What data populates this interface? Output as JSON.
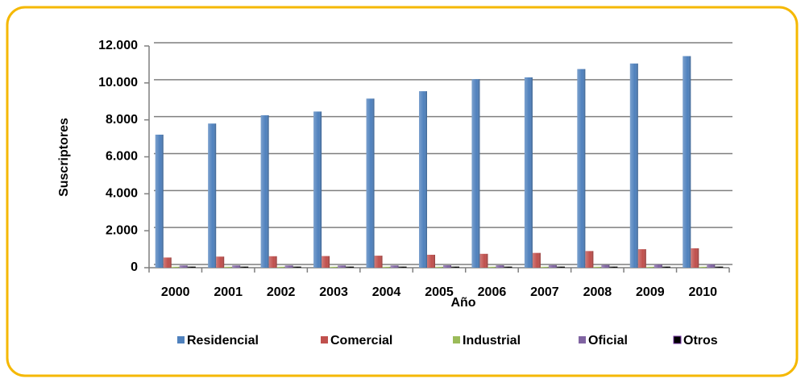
{
  "chart_data": {
    "type": "bar",
    "y_label": "Suscriptores",
    "x_label": "Año",
    "categories": [
      "2000",
      "2001",
      "2002",
      "2003",
      "2004",
      "2005",
      "2006",
      "2007",
      "2008",
      "2009",
      "2010"
    ],
    "series": [
      {
        "name": "Residencial",
        "color": "#4f81bd",
        "values": [
          7200,
          7800,
          8250,
          8450,
          9150,
          9550,
          10200,
          10300,
          10750,
          11050,
          11450
        ]
      },
      {
        "name": "Comercial",
        "color": "#c0504d",
        "values": [
          550,
          600,
          620,
          630,
          650,
          700,
          750,
          800,
          900,
          1000,
          1050
        ]
      },
      {
        "name": "Industrial",
        "color": "#9bbb59",
        "values": [
          50,
          50,
          50,
          50,
          50,
          50,
          50,
          50,
          50,
          50,
          50
        ]
      },
      {
        "name": "Oficial",
        "color": "#8064a2",
        "values": [
          120,
          120,
          120,
          120,
          120,
          130,
          130,
          140,
          150,
          170,
          180
        ]
      },
      {
        "name": "Otros",
        "color": "#000000",
        "values": [
          60,
          60,
          60,
          60,
          60,
          60,
          60,
          60,
          60,
          60,
          60
        ]
      }
    ],
    "ylim": [
      0,
      12000
    ],
    "yticks": [
      0,
      {
        "value": 2000,
        "label": "2.000"
      },
      {
        "value": 4000,
        "label": "4.000"
      },
      {
        "value": 6000,
        "label": "6.000"
      },
      {
        "value": 8000,
        "label": "8.000"
      },
      {
        "value": 10000,
        "label": "10.000"
      },
      {
        "value": 12000,
        "label": "12.000"
      }
    ],
    "grid": true,
    "legend": "bottom"
  }
}
